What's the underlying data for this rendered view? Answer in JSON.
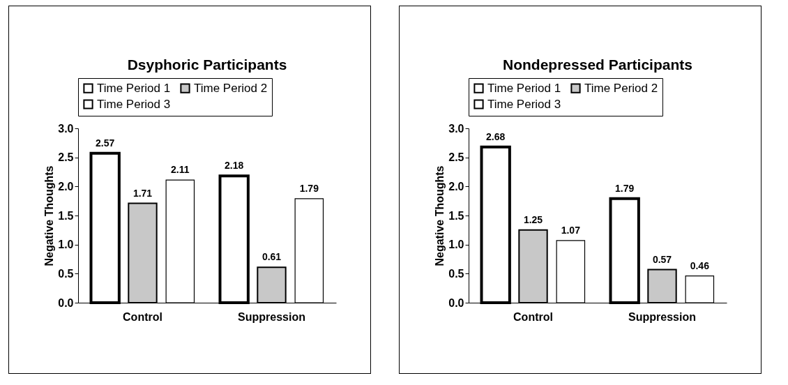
{
  "chart_data": [
    {
      "type": "bar",
      "title": "Dsyphoric Participants",
      "ylabel": "Negative Thoughts",
      "categories": [
        "Control",
        "Suppression"
      ],
      "series": [
        {
          "name": "Time Period 1",
          "color": "#ffffff",
          "values": [
            2.57,
            2.18
          ]
        },
        {
          "name": "Time Period 2",
          "color": "#c8c8c8",
          "values": [
            1.71,
            0.61
          ]
        },
        {
          "name": "Time Period 3",
          "color": "#ffffff",
          "values": [
            2.11,
            1.79
          ]
        }
      ],
      "ylim": [
        0,
        3
      ],
      "yticks": [
        {
          "value": 0,
          "label": "0.0"
        },
        {
          "value": 0.5,
          "label": "0.5"
        },
        {
          "value": 1,
          "label": "1.0"
        },
        {
          "value": 1.5,
          "label": "1.5"
        },
        {
          "value": 2,
          "label": "2.0"
        },
        {
          "value": 2.5,
          "label": "2.5"
        },
        {
          "value": 3,
          "label": "3.0"
        }
      ],
      "data_labels": true,
      "legend": "top",
      "grid": false
    },
    {
      "type": "bar",
      "title": "Nondepressed Participants",
      "ylabel": "Negative Thoughts",
      "categories": [
        "Control",
        "Suppression"
      ],
      "series": [
        {
          "name": "Time Period 1",
          "color": "#ffffff",
          "values": [
            2.68,
            1.79
          ]
        },
        {
          "name": "Time Period 2",
          "color": "#c8c8c8",
          "values": [
            1.25,
            0.57
          ]
        },
        {
          "name": "Time Period 3",
          "color": "#ffffff",
          "values": [
            1.07,
            0.46
          ]
        }
      ],
      "ylim": [
        0,
        3
      ],
      "yticks": [
        {
          "value": 0,
          "label": "0.0"
        },
        {
          "value": 0.5,
          "label": "0.5"
        },
        {
          "value": 1,
          "label": "1.0"
        },
        {
          "value": 1.5,
          "label": "1.5"
        },
        {
          "value": 2,
          "label": "2.0"
        },
        {
          "value": 2.5,
          "label": "2.5"
        },
        {
          "value": 3,
          "label": "3.0"
        }
      ],
      "data_labels": true,
      "legend": "top",
      "grid": false
    }
  ]
}
